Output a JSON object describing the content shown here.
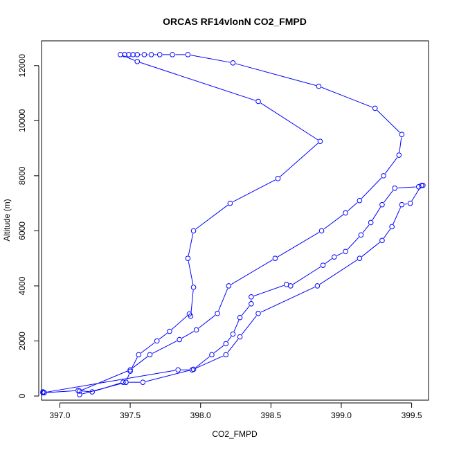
{
  "chart_data": {
    "type": "line",
    "title": "ORCAS RF14vlonN CO2_FMPD",
    "xlabel": "CO2_FMPD",
    "ylabel": "Altitude (m)",
    "xlim": [
      396.87,
      399.62
    ],
    "ylim": [
      -150,
      12900
    ],
    "x_ticks": [
      397.0,
      397.5,
      398.0,
      398.5,
      399.0,
      399.5
    ],
    "x_tick_labels": [
      "397.0",
      "397.5",
      "398.0",
      "398.5",
      "399.0",
      "399.5"
    ],
    "y_ticks": [
      0,
      2000,
      4000,
      6000,
      8000,
      10000,
      12000
    ],
    "y_tick_labels": [
      "0",
      "2000",
      "4000",
      "6000",
      "8000",
      "10000",
      "12000"
    ],
    "grid": false,
    "series_color": "#0000ff",
    "series": [
      {
        "marker": "open-circle",
        "points": [
          [
            396.88,
            150
          ],
          [
            396.89,
            120
          ],
          [
            397.13,
            200
          ],
          [
            397.23,
            150
          ],
          [
            397.45,
            500
          ],
          [
            397.47,
            500
          ],
          [
            397.5,
            900
          ],
          [
            397.56,
            1500
          ],
          [
            397.69,
            2000
          ],
          [
            397.78,
            2350
          ],
          [
            397.92,
            2980
          ],
          [
            397.93,
            2900
          ],
          [
            397.95,
            3950
          ],
          [
            397.91,
            5000
          ],
          [
            397.95,
            6000
          ],
          [
            398.21,
            7000
          ],
          [
            398.55,
            7900
          ],
          [
            398.85,
            9250
          ],
          [
            398.41,
            10700
          ],
          [
            397.55,
            12150
          ],
          [
            397.43,
            12400
          ],
          [
            397.46,
            12400
          ],
          [
            397.49,
            12400
          ],
          [
            397.52,
            12400
          ],
          [
            397.55,
            12400
          ],
          [
            397.6,
            12400
          ],
          [
            397.65,
            12400
          ],
          [
            397.71,
            12400
          ],
          [
            397.8,
            12400
          ],
          [
            397.91,
            12400
          ],
          [
            398.23,
            12100
          ],
          [
            398.84,
            11250
          ],
          [
            399.24,
            10450
          ],
          [
            399.43,
            9500
          ],
          [
            399.41,
            8750
          ],
          [
            399.3,
            8000
          ],
          [
            399.13,
            7100
          ],
          [
            399.03,
            6650
          ],
          [
            398.86,
            6000
          ],
          [
            398.53,
            5000
          ],
          [
            398.2,
            4000
          ],
          [
            398.12,
            3000
          ],
          [
            397.97,
            2400
          ],
          [
            397.85,
            2050
          ],
          [
            397.64,
            1500
          ],
          [
            397.5,
            950
          ],
          [
            397.14,
            180
          ],
          [
            397.14,
            50
          ],
          [
            397.47,
            500
          ],
          [
            397.59,
            500
          ],
          [
            397.95,
            970
          ],
          [
            398.08,
            1500
          ],
          [
            398.18,
            1900
          ],
          [
            398.23,
            2250
          ],
          [
            398.28,
            2850
          ],
          [
            398.36,
            3350
          ],
          [
            398.36,
            3600
          ],
          [
            398.61,
            4050
          ],
          [
            398.64,
            4000
          ],
          [
            398.87,
            4750
          ],
          [
            398.95,
            5050
          ],
          [
            399.03,
            5250
          ],
          [
            399.14,
            5850
          ],
          [
            399.21,
            6300
          ],
          [
            399.29,
            6950
          ],
          [
            399.38,
            7550
          ],
          [
            399.55,
            7600
          ],
          [
            399.58,
            7650
          ],
          [
            399.57,
            7650
          ],
          [
            399.49,
            7000
          ],
          [
            399.43,
            6950
          ],
          [
            399.36,
            6150
          ],
          [
            399.29,
            5650
          ],
          [
            399.13,
            5000
          ],
          [
            398.83,
            4000
          ],
          [
            398.41,
            3000
          ],
          [
            398.28,
            2150
          ],
          [
            398.18,
            1500
          ],
          [
            397.94,
            950
          ],
          [
            397.84,
            950
          ],
          [
            396.88,
            120
          ]
        ]
      }
    ]
  }
}
